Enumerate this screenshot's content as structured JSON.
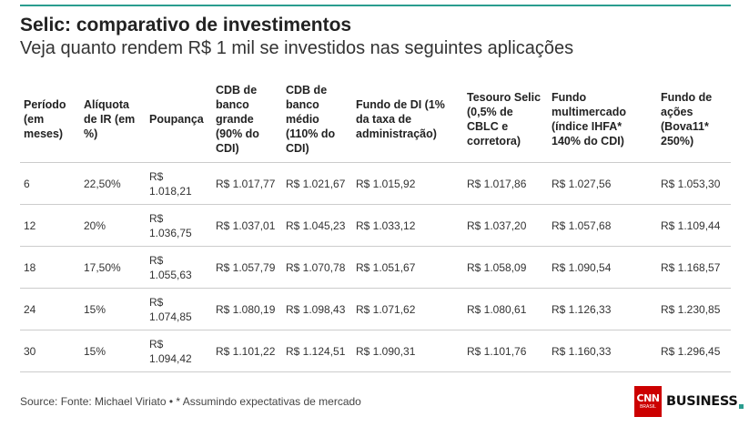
{
  "header": {
    "title": "Selic: comparativo de investimentos",
    "subtitle": "Veja quanto rendem R$ 1 mil se investidos nas seguintes aplicações"
  },
  "table": {
    "columns": [
      "Período (em meses)",
      "Alíquota de IR (em %)",
      "Poupança",
      "CDB de banco grande (90% do CDI)",
      "CDB de banco médio (110% do CDI)",
      "Fundo de DI (1% da taxa de administração)",
      "Tesouro Selic (0,5% de CBLC e corretora)",
      "Fundo multimercado (índice IHFA* 140% do CDI)",
      "Fundo de ações (Bova11* 250%)"
    ],
    "rows": [
      [
        "6",
        "22,50%",
        "R$ 1.018,21",
        "R$ 1.017,77",
        "R$ 1.021,67",
        "R$ 1.015,92",
        "R$ 1.017,86",
        "R$ 1.027,56",
        "R$ 1.053,30"
      ],
      [
        "12",
        "20%",
        "R$ 1.036,75",
        "R$ 1.037,01",
        "R$ 1.045,23",
        "R$ 1.033,12",
        "R$ 1.037,20",
        "R$ 1.057,68",
        "R$ 1.109,44"
      ],
      [
        "18",
        "17,50%",
        "R$ 1.055,63",
        "R$ 1.057,79",
        "R$ 1.070,78",
        "R$ 1.051,67",
        "R$ 1.058,09",
        "R$ 1.090,54",
        "R$ 1.168,57"
      ],
      [
        "24",
        "15%",
        "R$ 1.074,85",
        "R$ 1.080,19",
        "R$ 1.098,43",
        "R$ 1.071,62",
        "R$ 1.080,61",
        "R$ 1.126,33",
        "R$ 1.230,85"
      ],
      [
        "30",
        "15%",
        "R$ 1.094,42",
        "R$ 1.101,22",
        "R$ 1.124,51",
        "R$ 1.090,31",
        "R$ 1.101,76",
        "R$ 1.160,33",
        "R$ 1.296,45"
      ]
    ]
  },
  "footer": {
    "source": "Source: Fonte: Michael Viriato • * Assumindo expectativas de mercado",
    "logo_cnn": "CNN",
    "logo_brasil": "BRASIL",
    "logo_business": "BUSINESS"
  },
  "colors": {
    "accent": "#2a9d8f",
    "cnn_red": "#cc0000"
  }
}
